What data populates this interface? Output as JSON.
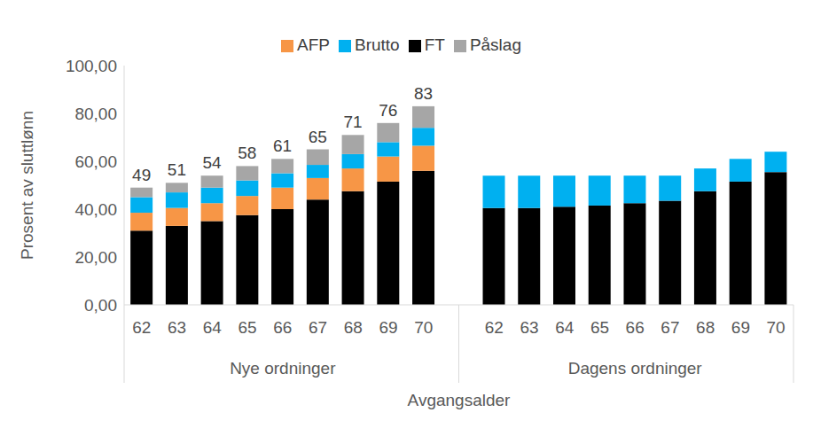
{
  "chart_data": {
    "type": "bar",
    "stacked": true,
    "legend": "top",
    "grid": false,
    "y_label": "Prosent av sluttlønn",
    "x_label": "Avgangsalder",
    "groups": [
      "Nye ordninger",
      "Dagens ordninger"
    ],
    "categories": [
      "62",
      "63",
      "64",
      "65",
      "66",
      "67",
      "68",
      "69",
      "70",
      null,
      "62",
      "63",
      "64",
      "65",
      "66",
      "67",
      "68",
      "69",
      "70"
    ],
    "series": [
      {
        "name": "FT",
        "color": "#000000",
        "values": [
          31,
          33,
          35,
          37.5,
          40,
          44,
          47.5,
          51.5,
          56,
          null,
          40.5,
          40.5,
          41,
          41.5,
          42.5,
          43.5,
          47.5,
          51.5,
          55.5
        ]
      },
      {
        "name": "AFP",
        "color": "#f79646",
        "values": [
          7.5,
          7.5,
          7.5,
          8,
          9,
          9,
          9.5,
          10.5,
          10.5,
          null,
          0,
          0,
          0,
          0,
          0,
          0,
          0,
          0,
          0
        ]
      },
      {
        "name": "Brutto",
        "color": "#00b0f0",
        "values": [
          6.5,
          6.5,
          6.5,
          6.5,
          6,
          5.5,
          6,
          6,
          7.5,
          null,
          13.5,
          13.5,
          13,
          12.5,
          11.5,
          10.5,
          9.5,
          9.5,
          8.5
        ]
      },
      {
        "name": "Påslag",
        "color": "#a6a6a6",
        "values": [
          4,
          4,
          5,
          6,
          6,
          6.5,
          8,
          8,
          9,
          null,
          0,
          0,
          0,
          0,
          0,
          0,
          0,
          0,
          0
        ]
      }
    ],
    "totals": [
      49,
      51,
      54,
      58,
      61,
      65,
      71,
      76,
      83,
      null,
      54,
      54,
      54,
      54,
      54,
      54,
      57,
      61,
      64
    ],
    "ylim": [
      0,
      100
    ],
    "yticks": [
      {
        "value": 0,
        "label": "0,00"
      },
      {
        "value": 20,
        "label": "20,00"
      },
      {
        "value": 40,
        "label": "40,00"
      },
      {
        "value": 60,
        "label": "60,00"
      },
      {
        "value": 80,
        "label": "80,00"
      },
      {
        "value": 100,
        "label": "100,00"
      }
    ]
  }
}
